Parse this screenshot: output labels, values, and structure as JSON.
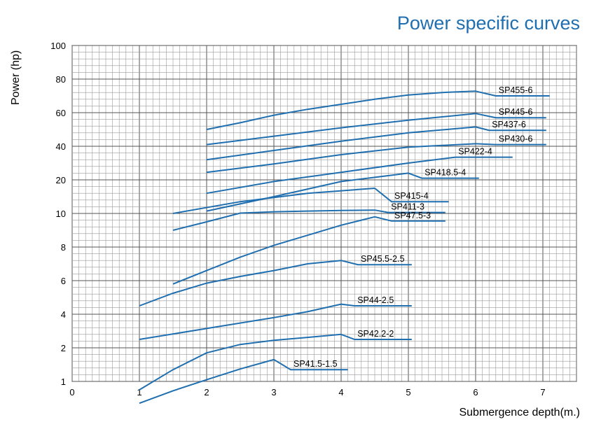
{
  "chart_data": {
    "type": "line",
    "title": "Power specific curves",
    "xlabel": "Submergence depth(m.)",
    "ylabel": "Power (hp)",
    "xlim": [
      0,
      7.5
    ],
    "x_ticks": [
      0,
      1,
      2,
      3,
      4,
      5,
      6,
      7
    ],
    "y_tick_labels": [
      "1",
      "2",
      "4",
      "6",
      "8",
      "10",
      "20",
      "40",
      "60",
      "80",
      "100"
    ],
    "grid": true,
    "line_color": "#1f6fb0",
    "series": [
      {
        "name": "SP455-6",
        "points": [
          [
            2.0,
            50
          ],
          [
            2.5,
            54
          ],
          [
            3.0,
            58.5
          ],
          [
            3.5,
            62
          ],
          [
            4.0,
            65
          ],
          [
            4.5,
            68
          ],
          [
            5.0,
            70.5
          ],
          [
            5.5,
            72
          ],
          [
            6.0,
            72.8
          ]
        ],
        "tail": [
          [
            6.0,
            72.8
          ],
          [
            6.3,
            70
          ],
          [
            7.1,
            70
          ]
        ]
      },
      {
        "name": "SP445-6",
        "points": [
          [
            2.0,
            41
          ],
          [
            3.0,
            46
          ],
          [
            4.0,
            51
          ],
          [
            5.0,
            55.5
          ],
          [
            6.0,
            59.5
          ]
        ],
        "tail": [
          [
            6.0,
            59.5
          ],
          [
            6.3,
            57
          ],
          [
            7.05,
            57
          ]
        ]
      },
      {
        "name": "SP437-6",
        "points": [
          [
            2.0,
            32
          ],
          [
            3.0,
            37.5
          ],
          [
            4.0,
            43
          ],
          [
            5.0,
            48
          ],
          [
            6.0,
            51.5
          ]
        ],
        "tail": [
          [
            6.0,
            51.5
          ],
          [
            6.2,
            49.5
          ],
          [
            7.05,
            49.5
          ]
        ]
      },
      {
        "name": "SP430-6",
        "points": [
          [
            2.0,
            24.5
          ],
          [
            3.0,
            29.5
          ],
          [
            4.0,
            35
          ],
          [
            5.0,
            39.5
          ],
          [
            6.0,
            41.5
          ]
        ],
        "tail": [
          [
            6.0,
            41.5
          ],
          [
            6.3,
            41
          ],
          [
            7.05,
            41
          ]
        ]
      },
      {
        "name": "SP422-4",
        "points": [
          [
            2.0,
            16
          ],
          [
            3.0,
            19.5
          ],
          [
            4.0,
            24.5
          ],
          [
            5.0,
            30
          ],
          [
            5.7,
            33.5
          ]
        ],
        "tail": [
          [
            5.7,
            33.5
          ],
          [
            6.55,
            33.5
          ]
        ]
      },
      {
        "name": "SP418.5-4",
        "points": [
          [
            2.0,
            10.7
          ],
          [
            3.0,
            15
          ],
          [
            4.0,
            19.5
          ],
          [
            5.0,
            24
          ]
        ],
        "tail": [
          [
            5.0,
            24
          ],
          [
            5.2,
            21
          ],
          [
            6.05,
            21
          ]
        ]
      },
      {
        "name": "SP415-4",
        "points": [
          [
            1.5,
            10
          ],
          [
            2.5,
            13.5
          ],
          [
            3.5,
            16
          ],
          [
            4.5,
            17.5
          ]
        ],
        "tail": [
          [
            4.5,
            17.5
          ],
          [
            4.75,
            13.5
          ],
          [
            5.6,
            13.5
          ]
        ]
      },
      {
        "name": "SP411-3",
        "points": [
          [
            1.5,
            9.0
          ],
          [
            2.0,
            9.5
          ],
          [
            2.5,
            10.1
          ],
          [
            3.0,
            10.5
          ],
          [
            3.5,
            10.7
          ],
          [
            4.0,
            10.9
          ],
          [
            4.5,
            11
          ]
        ],
        "tail": [
          [
            4.5,
            11
          ],
          [
            4.7,
            10.3
          ],
          [
            5.55,
            10.3
          ]
        ]
      },
      {
        "name": "SP47.5-3",
        "points": [
          [
            1.5,
            5.8
          ],
          [
            2.0,
            6.6
          ],
          [
            2.5,
            7.4
          ],
          [
            3.0,
            8.1
          ],
          [
            3.5,
            8.7
          ],
          [
            4.0,
            9.3
          ],
          [
            4.5,
            9.8
          ]
        ],
        "tail": [
          [
            4.5,
            9.8
          ],
          [
            4.75,
            9.55
          ],
          [
            5.55,
            9.55
          ]
        ]
      },
      {
        "name": "SP45.5-2.5",
        "points": [
          [
            1.0,
            4.5
          ],
          [
            1.5,
            5.25
          ],
          [
            2.0,
            5.85
          ],
          [
            2.5,
            6.25
          ],
          [
            3.0,
            6.6
          ],
          [
            3.5,
            7.0
          ],
          [
            4.0,
            7.2
          ]
        ],
        "tail": [
          [
            4.0,
            7.2
          ],
          [
            4.25,
            6.95
          ],
          [
            5.05,
            6.95
          ]
        ]
      },
      {
        "name": "SP44-2.5",
        "points": [
          [
            1.0,
            2.5
          ],
          [
            2.0,
            3.15
          ],
          [
            3.0,
            3.8
          ],
          [
            3.5,
            4.15
          ],
          [
            4.0,
            4.6
          ]
        ],
        "tail": [
          [
            4.0,
            4.6
          ],
          [
            4.2,
            4.5
          ],
          [
            5.05,
            4.5
          ]
        ]
      },
      {
        "name": "SP42.2-2",
        "points": [
          [
            1.0,
            0.75
          ],
          [
            1.5,
            1.35
          ],
          [
            2.0,
            1.85
          ],
          [
            2.5,
            2.2
          ],
          [
            3.0,
            2.45
          ],
          [
            3.5,
            2.62
          ],
          [
            4.0,
            2.8
          ]
        ],
        "tail": [
          [
            4.0,
            2.8
          ],
          [
            4.2,
            2.5
          ],
          [
            5.05,
            2.5
          ]
        ]
      },
      {
        "name": "SP41.5-1.5",
        "points": [
          [
            1.0,
            0.35
          ],
          [
            1.5,
            0.72
          ],
          [
            2.0,
            1.05
          ],
          [
            2.5,
            1.37
          ],
          [
            3.0,
            1.65
          ]
        ],
        "tail": [
          [
            3.0,
            1.65
          ],
          [
            3.25,
            1.35
          ],
          [
            4.1,
            1.35
          ]
        ]
      }
    ]
  }
}
